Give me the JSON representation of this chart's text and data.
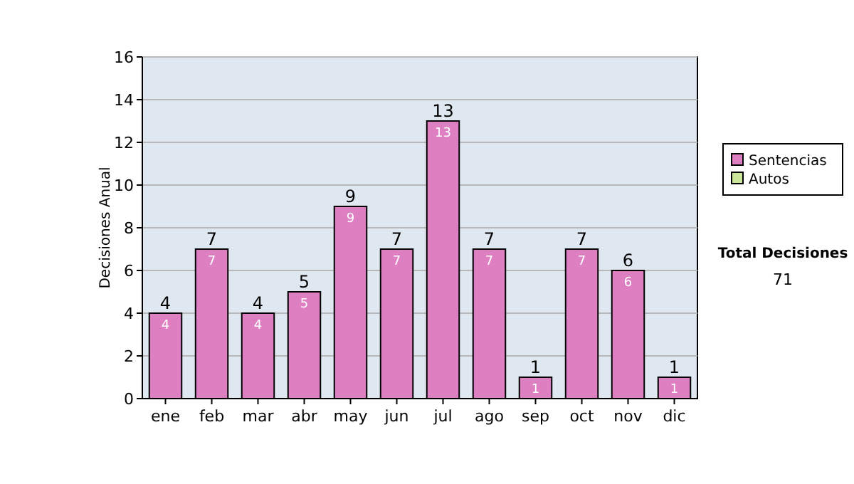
{
  "chart_data": {
    "type": "bar",
    "stacked": true,
    "ylabel": "Decisiones Anual",
    "categories": [
      "ene",
      "feb",
      "mar",
      "abr",
      "may",
      "jun",
      "jul",
      "ago",
      "sep",
      "oct",
      "nov",
      "dic"
    ],
    "series": [
      {
        "name": "Sentencias",
        "color": "#dd7fc0",
        "values": [
          4,
          7,
          4,
          5,
          9,
          7,
          13,
          7,
          1,
          7,
          6,
          1
        ],
        "value_labels": [
          "4",
          "7",
          "4",
          "5",
          "9",
          "7",
          "13",
          "7",
          "1",
          "7",
          "6",
          "1"
        ]
      },
      {
        "name": "Autos",
        "color": "#cce699",
        "values": [
          0,
          0,
          0,
          0,
          0,
          0,
          0,
          0,
          0,
          0,
          0,
          0
        ]
      }
    ],
    "totals": [
      "4",
      "7",
      "4",
      "5",
      "9",
      "7",
      "13",
      "7",
      "1",
      "7",
      "6",
      "1"
    ],
    "ylim": [
      0,
      16
    ],
    "yticks": [
      0,
      2,
      4,
      6,
      8,
      10,
      12,
      14,
      16
    ],
    "grid": "y",
    "legend": "right",
    "annotations": [
      "Total Decisiones",
      "71"
    ]
  }
}
